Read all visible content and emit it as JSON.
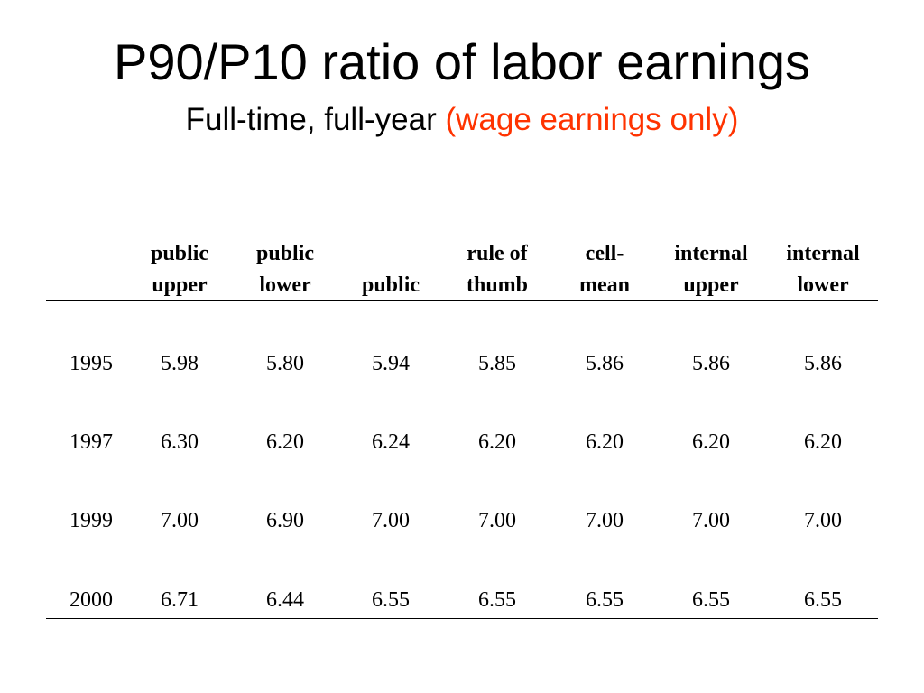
{
  "slide": {
    "title": "P90/P10 ratio of labor earnings",
    "subtitle_main": "Full-time, full-year ",
    "subtitle_accent": "(wage earnings only)",
    "accent_color": "#ff3300"
  },
  "table": {
    "columns": [
      {
        "line1": "public",
        "line2": "upper"
      },
      {
        "line1": "public",
        "line2": "lower"
      },
      {
        "line1": "",
        "line2": "public"
      },
      {
        "line1": "rule of",
        "line2": "thumb"
      },
      {
        "line1": "cell-",
        "line2": "mean"
      },
      {
        "line1": "internal",
        "line2": "upper"
      },
      {
        "line1": "internal",
        "line2": "lower"
      }
    ],
    "rows": [
      {
        "year": "1995",
        "values": [
          "5.98",
          "5.80",
          "5.94",
          "5.85",
          "5.86",
          "5.86",
          "5.86"
        ]
      },
      {
        "year": "1997",
        "values": [
          "6.30",
          "6.20",
          "6.24",
          "6.20",
          "6.20",
          "6.20",
          "6.20"
        ]
      },
      {
        "year": "1999",
        "values": [
          "7.00",
          "6.90",
          "7.00",
          "7.00",
          "7.00",
          "7.00",
          "7.00"
        ]
      },
      {
        "year": "2000",
        "values": [
          "6.71",
          "6.44",
          "6.55",
          "6.55",
          "6.55",
          "6.55",
          "6.55"
        ]
      }
    ]
  }
}
